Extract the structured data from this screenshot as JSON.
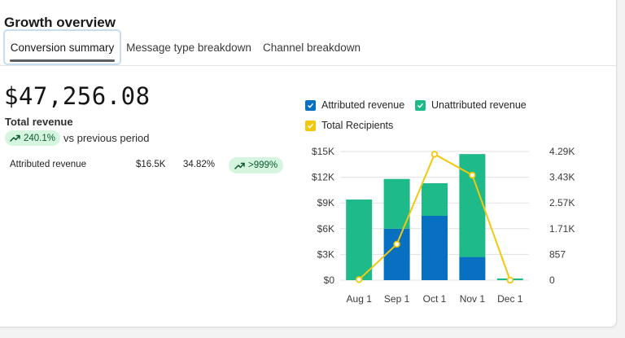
{
  "header": {
    "title": "Growth overview"
  },
  "tabs": [
    {
      "label": "Conversion summary"
    },
    {
      "label": "Message type breakdown"
    },
    {
      "label": "Channel breakdown"
    }
  ],
  "summary": {
    "total_value": "$47,256.08",
    "total_label": "Total revenue",
    "change_pct": "240.1%",
    "change_text": "vs previous period"
  },
  "breakdown": [
    {
      "name": "Attributed revenue",
      "value": "$16.5K",
      "percent": "34.82%",
      "change": ">999%"
    }
  ],
  "colors": {
    "attributed": "#0870c1",
    "unattributed": "#1fba89",
    "recipients": "#f2c80f",
    "positive_bg": "#d5f5e0",
    "positive_fg": "#0d5a2e"
  },
  "chart_data": {
    "type": "bar",
    "stacked": true,
    "categories": [
      "Aug 1",
      "Sep 1",
      "Oct 1",
      "Nov 1",
      "Dec 1"
    ],
    "series": [
      {
        "name": "Attributed revenue",
        "type": "bar",
        "axis": "left",
        "values": [
          0,
          6000,
          7500,
          2700,
          0
        ]
      },
      {
        "name": "Unattributed revenue",
        "type": "bar",
        "axis": "left",
        "values": [
          9400,
          5800,
          3800,
          12000,
          200
        ]
      },
      {
        "name": "Total Recipients",
        "type": "line",
        "axis": "right",
        "values": [
          20,
          1200,
          4200,
          3500,
          0
        ]
      }
    ],
    "y_left": {
      "ticks": [
        "$0",
        "$3K",
        "$6K",
        "$9K",
        "$12K",
        "$15K"
      ],
      "min": 0,
      "max": 15000
    },
    "y_right": {
      "ticks": [
        "0",
        "857",
        "1.71K",
        "2.57K",
        "3.43K",
        "4.29K"
      ],
      "min": 0,
      "max": 4290
    },
    "legend_position": "top"
  }
}
